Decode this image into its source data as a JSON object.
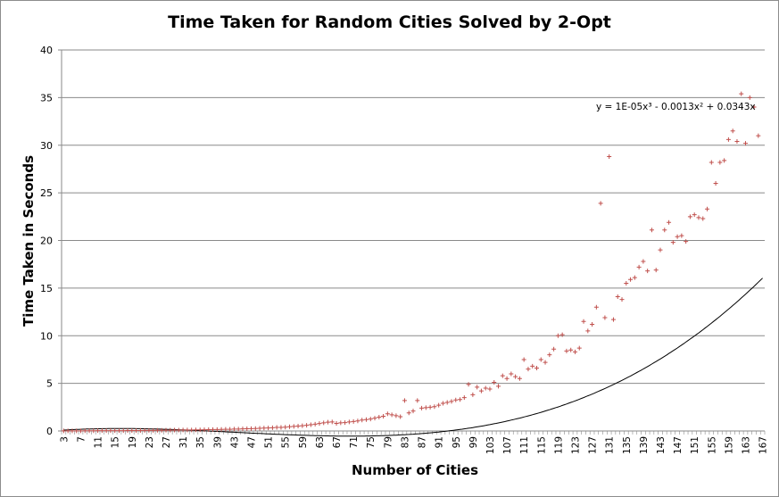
{
  "chart_data": {
    "type": "scatter",
    "title": "Time Taken for Random Cities Solved by 2-Opt",
    "xlabel": "Number of Cities",
    "ylabel": "Time Taken in Seconds",
    "ylim": [
      0,
      40
    ],
    "y_ticks": [
      0,
      5,
      10,
      15,
      20,
      25,
      30,
      35,
      40
    ],
    "x_range": [
      3,
      167
    ],
    "x_tick_labels": [
      "3",
      "7",
      "11",
      "15",
      "19",
      "23",
      "27",
      "31",
      "35",
      "39",
      "43",
      "47",
      "51",
      "55",
      "59",
      "63",
      "67",
      "71",
      "75",
      "79",
      "83",
      "87",
      "91",
      "95",
      "99",
      "103",
      "107",
      "111",
      "115",
      "119",
      "123",
      "127",
      "131",
      "135",
      "139",
      "143",
      "147",
      "151",
      "155",
      "159",
      "163",
      "167"
    ],
    "grid": true,
    "marker_color": "#c0504d",
    "trendline": {
      "type": "polynomial",
      "equation": "y = 1E-05x³ - 0.0013x² + 0.0343x",
      "coefficients": {
        "a3": 1e-05,
        "a2": -0.0013,
        "a1": 0.0343,
        "a0": 0
      }
    },
    "series": [
      {
        "values": [
          0.01,
          0.01,
          0.01,
          0.01,
          0.01,
          0.02,
          0.02,
          0.02,
          0.03,
          0.03,
          0.03,
          0.03,
          0.04,
          0.04,
          0.04,
          0.05,
          0.05,
          0.05,
          0.05,
          0.06,
          0.06,
          0.06,
          0.07,
          0.07,
          0.08,
          0.08,
          0.09,
          0.09,
          0.1,
          0.1,
          0.11,
          0.12,
          0.12,
          0.13,
          0.14,
          0.15,
          0.15,
          0.16,
          0.17,
          0.18,
          0.2,
          0.2,
          0.22,
          0.23,
          0.25,
          0.26,
          0.28,
          0.3,
          0.32,
          0.34,
          0.37,
          0.38,
          0.4,
          0.44,
          0.48,
          0.52,
          0.55,
          0.6,
          0.65,
          0.72,
          0.78,
          0.85,
          0.92,
          0.95,
          0.8,
          0.85,
          0.88,
          0.95,
          1.0,
          1.05,
          1.15,
          1.2,
          1.25,
          1.35,
          1.45,
          1.55,
          1.8,
          1.7,
          1.6,
          1.5,
          3.2,
          1.9,
          2.1,
          3.2,
          2.4,
          2.45,
          2.5,
          2.55,
          2.7,
          2.9,
          3.0,
          3.1,
          3.25,
          3.3,
          3.5,
          4.9,
          3.8,
          4.6,
          4.2,
          4.5,
          4.4,
          5.1,
          4.7,
          5.8,
          5.5,
          6.0,
          5.7,
          5.5,
          7.5,
          6.5,
          6.8,
          6.6,
          7.5,
          7.2,
          8.0,
          8.6,
          10.0,
          10.1,
          8.4,
          8.5,
          8.3,
          8.7,
          11.5,
          10.5,
          11.2,
          13.0,
          23.9,
          11.9,
          28.8,
          11.7,
          14.1,
          13.8,
          15.5,
          15.9,
          16.1,
          17.2,
          17.8,
          16.8,
          21.1,
          16.9,
          19.0,
          21.1,
          21.9,
          19.8,
          20.4,
          20.5,
          19.9,
          22.5,
          22.7,
          22.4,
          22.3,
          23.3,
          28.2,
          26.0,
          28.2,
          28.4,
          30.6,
          31.5,
          30.4,
          35.4,
          30.2,
          35.0,
          34.0,
          31.0
        ]
      }
    ]
  }
}
